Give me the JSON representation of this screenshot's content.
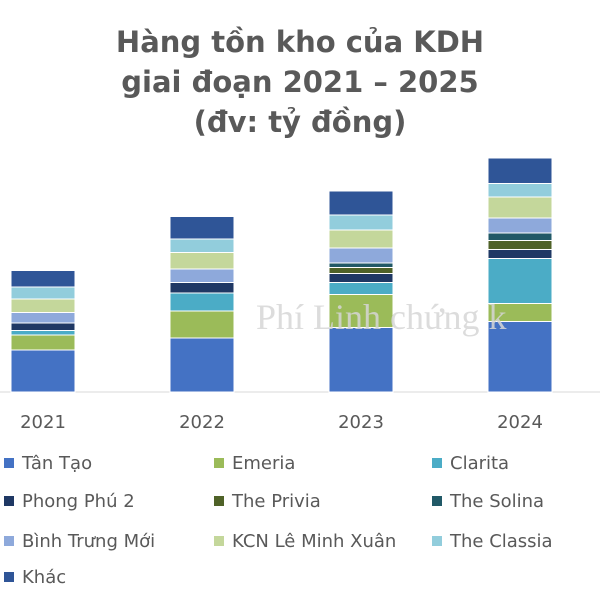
{
  "title_lines": [
    "Hàng tồn kho của KDH",
    "giai đoạn 2021 – 2025",
    "(đv: tỷ đồng)"
  ],
  "watermark": "Phí Linh chứng k",
  "chart_data": {
    "type": "bar",
    "stacked": true,
    "title": "Hàng tồn kho của KDH giai đoạn 2021 – 2025 (đv: tỷ đồng)",
    "categories": [
      "2021",
      "2022",
      "2023",
      "2024"
    ],
    "series": [
      {
        "name": "Tân Tạo",
        "color": "#4472C4",
        "values": [
          28,
          36,
          43,
          47
        ]
      },
      {
        "name": "Emeria",
        "color": "#9BBB59",
        "values": [
          10,
          18,
          22,
          12
        ]
      },
      {
        "name": "Clarita",
        "color": "#4BACC6",
        "values": [
          3,
          12,
          8,
          30
        ]
      },
      {
        "name": "Phong Phú 2",
        "color": "#1F3864",
        "values": [
          5,
          7,
          6,
          6
        ]
      },
      {
        "name": "The Privia",
        "color": "#4F6228",
        "values": [
          0,
          0,
          4,
          6
        ]
      },
      {
        "name": "The Solina",
        "color": "#215967",
        "values": [
          0,
          0,
          3,
          5
        ]
      },
      {
        "name": "Bình Trưng Mới",
        "color": "#8EA9DB",
        "values": [
          7,
          9,
          10,
          10
        ]
      },
      {
        "name": "KCN Lê Minh Xuân",
        "color": "#C4D79B",
        "values": [
          9,
          11,
          12,
          14
        ]
      },
      {
        "name": "The Classia",
        "color": "#92CDDC",
        "values": [
          8,
          9,
          10,
          9
        ]
      },
      {
        "name": "Khác",
        "color": "#2F5597",
        "values": [
          11,
          15,
          16,
          17
        ]
      }
    ],
    "legend_position": "bottom",
    "grid": false
  }
}
